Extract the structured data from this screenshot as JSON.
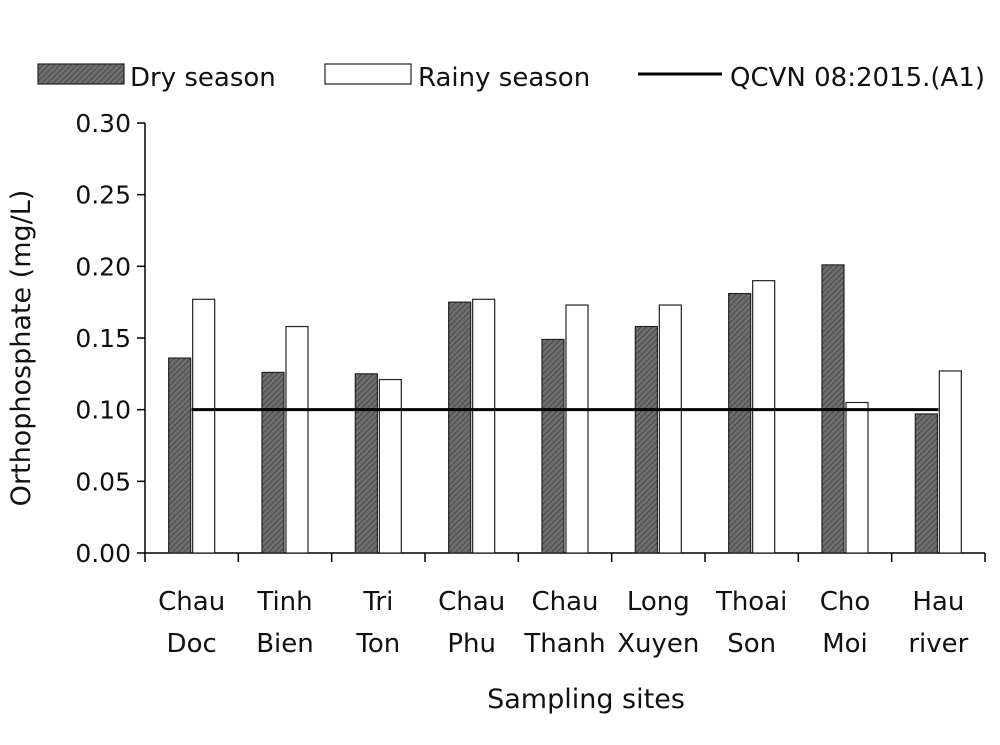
{
  "chart_data": {
    "type": "bar",
    "title": "",
    "xlabel": "Sampling sites",
    "ylabel": "Orthophosphate (mg/L)",
    "ylim": [
      0,
      0.3
    ],
    "yticks": [
      "0.00",
      "0.05",
      "0.10",
      "0.15",
      "0.20",
      "0.25",
      "0.30"
    ],
    "categories": [
      [
        "Chau",
        "Doc"
      ],
      [
        "Tinh",
        "Bien"
      ],
      [
        "Tri",
        "Ton"
      ],
      [
        "Chau",
        "Phu"
      ],
      [
        "Chau",
        "Thanh"
      ],
      [
        "Long",
        "Xuyen"
      ],
      [
        "Thoai",
        "Son"
      ],
      [
        "Cho",
        "Moi"
      ],
      [
        "Hau",
        "river"
      ]
    ],
    "series": [
      {
        "name": "Dry season",
        "fill": "hatched-dark-grey",
        "values": [
          0.136,
          0.126,
          0.125,
          0.175,
          0.149,
          0.158,
          0.181,
          0.201,
          0.097
        ]
      },
      {
        "name": "Rainy season",
        "fill": "white",
        "values": [
          0.177,
          0.158,
          0.121,
          0.177,
          0.173,
          0.173,
          0.19,
          0.105,
          0.127
        ]
      }
    ],
    "reference_line": {
      "name": "QCVN 08:2015.(A1)",
      "value": 0.1,
      "color": "#000000"
    },
    "legend_position": "top",
    "grid": false
  }
}
